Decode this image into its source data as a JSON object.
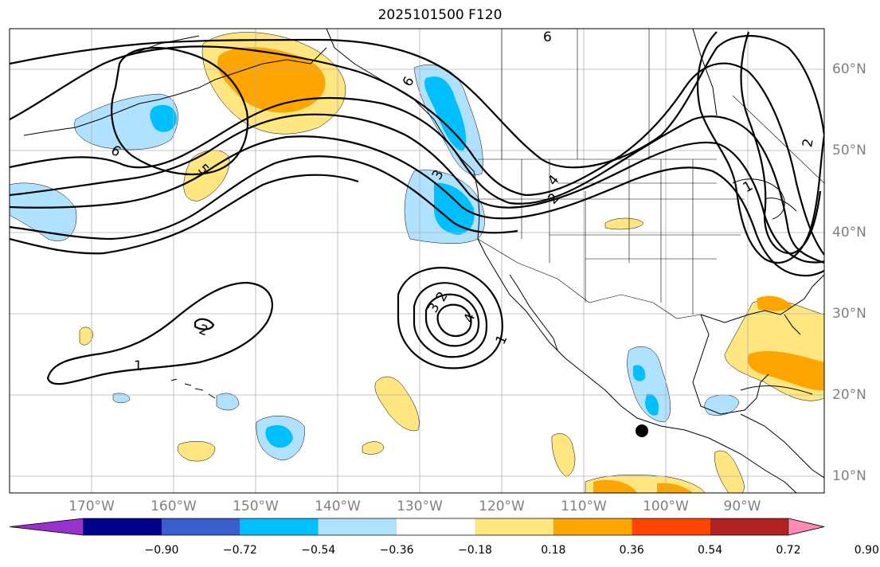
{
  "title": "2025101500 F120",
  "lon_labels": [
    "170°W",
    "160°W",
    "150°W",
    "140°W",
    "130°W",
    "120°W",
    "110°W",
    "100°W",
    "90°W"
  ],
  "lat_labels": [
    "60°N",
    "50°N",
    "40°N",
    "30°N",
    "20°N",
    "10°N"
  ],
  "colorbar": {
    "ticks": [
      "−0.90",
      "−0.72",
      "−0.54",
      "−0.36",
      "−0.18",
      "0.18",
      "0.36",
      "0.54",
      "0.72",
      "0.90"
    ],
    "colors": [
      "#9932cc",
      "#00008b",
      "#3a5fcd",
      "#00bfff",
      "#b0e2ff",
      "#ffffff",
      "#ffe680",
      "#ffa500",
      "#ff4500",
      "#b22222",
      "#ff8cb0"
    ]
  },
  "contour_labels": [
    "6",
    "6",
    "6",
    "5",
    "4",
    "3",
    "2",
    "2",
    "1",
    "1",
    "3",
    "2",
    "4",
    "1",
    "2"
  ],
  "colors": {
    "light_blue": "#b0e2ff",
    "blue": "#00bfff",
    "light_yellow": "#ffe680",
    "orange": "#ffa500",
    "grid": "#b0b0b0"
  }
}
